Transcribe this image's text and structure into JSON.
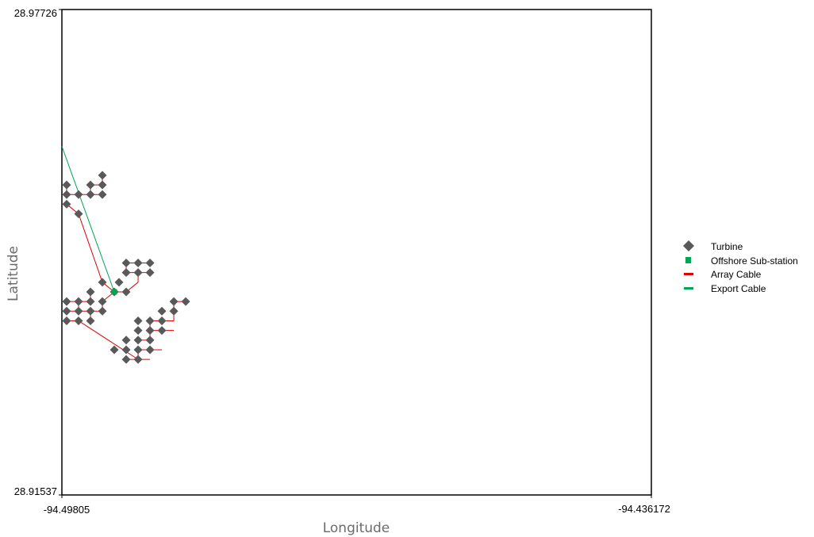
{
  "chart_data": {
    "type": "scatter",
    "title": "",
    "xlabel": "Longitude",
    "ylabel": "Latitude",
    "xlim": [
      -94.49805,
      -94.436172
    ],
    "ylim": [
      28.91537,
      28.97726
    ],
    "x_tick_labels": [
      "-94.49805",
      "-94.436172"
    ],
    "y_tick_labels": [
      "28.97726",
      "28.91537"
    ],
    "grid": false,
    "legend_position": "right",
    "colors": {
      "turbine": "#595959",
      "substation": "#00a651",
      "array_cable": "#e00000",
      "export_cable": "#00a651"
    },
    "legend": [
      {
        "label": "Turbine",
        "marker": "diamond",
        "color": "#595959"
      },
      {
        "label": "Offshore Sub-station",
        "marker": "square",
        "color": "#00a651"
      },
      {
        "label": "Array Cable",
        "marker": "line",
        "color": "#e00000"
      },
      {
        "label": "Export Cable",
        "marker": "line",
        "color": "#00a651"
      }
    ],
    "turbines": [
      [
        -94.49755,
        28.9388
      ],
      [
        -94.4963,
        28.9388
      ],
      [
        -94.49505,
        28.9388
      ],
      [
        -94.4938,
        28.9388
      ],
      [
        -94.49755,
        28.93757
      ],
      [
        -94.4963,
        28.93757
      ],
      [
        -94.49505,
        28.93757
      ],
      [
        -94.49755,
        28.94003
      ],
      [
        -94.4963,
        28.94003
      ],
      [
        -94.49505,
        28.94003
      ],
      [
        -94.4938,
        28.94003
      ],
      [
        -94.49505,
        28.94126
      ],
      [
        -94.49255,
        28.94126
      ],
      [
        -94.4913,
        28.94126
      ],
      [
        -94.4938,
        28.94249
      ],
      [
        -94.49205,
        28.94249
      ],
      [
        -94.4913,
        28.94372
      ],
      [
        -94.49005,
        28.94372
      ],
      [
        -94.4913,
        28.94495
      ],
      [
        -94.49005,
        28.94495
      ],
      [
        -94.4888,
        28.94495
      ],
      [
        -94.4888,
        28.94372
      ],
      [
        -94.49755,
        28.95367
      ],
      [
        -94.4963,
        28.95367
      ],
      [
        -94.49505,
        28.95367
      ],
      [
        -94.4938,
        28.95367
      ],
      [
        -94.49755,
        28.95244
      ],
      [
        -94.49755,
        28.9549
      ],
      [
        -94.49505,
        28.9549
      ],
      [
        -94.4938,
        28.9549
      ],
      [
        -94.4938,
        28.95613
      ],
      [
        -94.4963,
        28.95121
      ],
      [
        -94.4863,
        28.94003
      ],
      [
        -94.48505,
        28.94003
      ],
      [
        -94.48755,
        28.9388
      ],
      [
        -94.4863,
        28.9388
      ],
      [
        -94.48755,
        28.93757
      ],
      [
        -94.4888,
        28.93757
      ],
      [
        -94.49005,
        28.93757
      ],
      [
        -94.4888,
        28.93634
      ],
      [
        -94.49005,
        28.93634
      ],
      [
        -94.48755,
        28.93634
      ],
      [
        -94.4888,
        28.93511
      ],
      [
        -94.4913,
        28.93511
      ],
      [
        -94.49005,
        28.93511
      ],
      [
        -94.49005,
        28.93388
      ],
      [
        -94.4888,
        28.93388
      ],
      [
        -94.4913,
        28.93388
      ],
      [
        -94.49005,
        28.93265
      ],
      [
        -94.4913,
        28.93265
      ],
      [
        -94.49255,
        28.93388
      ]
    ],
    "substation": [
      -94.49255,
      28.94126
    ],
    "array_cables": [
      [
        [
          -94.49755,
          28.94003
        ],
        [
          -94.49505,
          28.94003
        ]
      ],
      [
        [
          -94.49755,
          28.9388
        ],
        [
          -94.4938,
          28.9388
        ]
      ],
      [
        [
          -94.49755,
          28.93757
        ],
        [
          -94.4963,
          28.93757
        ]
      ],
      [
        [
          -94.4963,
          28.9388
        ],
        [
          -94.4963,
          28.94003
        ]
      ],
      [
        [
          -94.49505,
          28.94003
        ],
        [
          -94.49505,
          28.94126
        ]
      ],
      [
        [
          -94.49505,
          28.9388
        ],
        [
          -94.49505,
          28.93757
        ]
      ],
      [
        [
          -94.4938,
          28.9388
        ],
        [
          -94.4938,
          28.94003
        ]
      ],
      [
        [
          -94.4938,
          28.94003
        ],
        [
          -94.49255,
          28.94126
        ]
      ],
      [
        [
          -94.49255,
          28.94126
        ],
        [
          -94.4938,
          28.94249
        ]
      ],
      [
        [
          -94.49255,
          28.94126
        ],
        [
          -94.4913,
          28.94126
        ]
      ],
      [
        [
          -94.4913,
          28.94126
        ],
        [
          -94.49005,
          28.94249
        ]
      ],
      [
        [
          -94.49005,
          28.94249
        ],
        [
          -94.49005,
          28.94372
        ]
      ],
      [
        [
          -94.4913,
          28.94372
        ],
        [
          -94.4888,
          28.94372
        ]
      ],
      [
        [
          -94.4913,
          28.94495
        ],
        [
          -94.4888,
          28.94495
        ]
      ],
      [
        [
          -94.4913,
          28.94372
        ],
        [
          -94.4913,
          28.94495
        ]
      ],
      [
        [
          -94.4938,
          28.94249
        ],
        [
          -94.4963,
          28.95121
        ]
      ],
      [
        [
          -94.4963,
          28.95121
        ],
        [
          -94.49755,
          28.95244
        ]
      ],
      [
        [
          -94.49755,
          28.95367
        ],
        [
          -94.4938,
          28.95367
        ]
      ],
      [
        [
          -94.49505,
          28.95367
        ],
        [
          -94.49505,
          28.9549
        ]
      ],
      [
        [
          -94.49505,
          28.9549
        ],
        [
          -94.4938,
          28.9549
        ]
      ],
      [
        [
          -94.4938,
          28.9549
        ],
        [
          -94.4938,
          28.95613
        ]
      ],
      [
        [
          -94.49755,
          28.9549
        ],
        [
          -94.49755,
          28.95367
        ]
      ],
      [
        [
          -94.4963,
          28.93757
        ],
        [
          -94.49005,
          28.93265
        ]
      ],
      [
        [
          -94.4913,
          28.93265
        ],
        [
          -94.4888,
          28.93265
        ]
      ],
      [
        [
          -94.49005,
          28.93265
        ],
        [
          -94.49005,
          28.93388
        ]
      ],
      [
        [
          -94.49005,
          28.93388
        ],
        [
          -94.48755,
          28.93388
        ]
      ],
      [
        [
          -94.49005,
          28.93511
        ],
        [
          -94.4888,
          28.93511
        ]
      ],
      [
        [
          -94.4888,
          28.93511
        ],
        [
          -94.4888,
          28.93757
        ]
      ],
      [
        [
          -94.4888,
          28.93634
        ],
        [
          -94.4863,
          28.93634
        ]
      ],
      [
        [
          -94.4888,
          28.93757
        ],
        [
          -94.4863,
          28.93757
        ]
      ],
      [
        [
          -94.4863,
          28.93757
        ],
        [
          -94.4863,
          28.94003
        ]
      ],
      [
        [
          -94.4863,
          28.94003
        ],
        [
          -94.48505,
          28.94003
        ]
      ]
    ],
    "export_cable": [
      [
        -94.49805,
        28.95982
      ],
      [
        -94.49255,
        28.94126
      ]
    ]
  }
}
